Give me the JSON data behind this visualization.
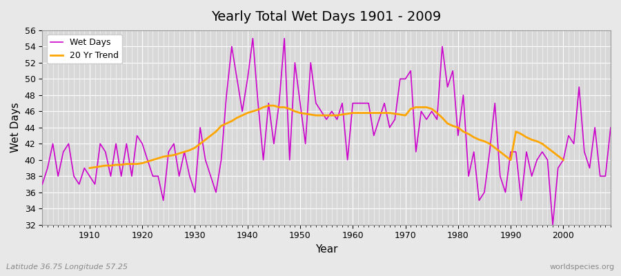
{
  "title": "Yearly Total Wet Days 1901 - 2009",
  "xlabel": "Year",
  "ylabel": "Wet Days",
  "subtitle": "Latitude 36.75 Longitude 57.25",
  "watermark": "worldspecies.org",
  "wet_days_color": "#cc00cc",
  "trend_color": "#ffa500",
  "bg_color": "#e8e8e8",
  "plot_bg_color": "#d8d8d8",
  "ylim": [
    32,
    56
  ],
  "yticks": [
    32,
    34,
    36,
    38,
    40,
    42,
    44,
    46,
    48,
    50,
    52,
    54,
    56
  ],
  "years": [
    1901,
    1902,
    1903,
    1904,
    1905,
    1906,
    1907,
    1908,
    1909,
    1910,
    1911,
    1912,
    1913,
    1914,
    1915,
    1916,
    1917,
    1918,
    1919,
    1920,
    1921,
    1922,
    1923,
    1924,
    1925,
    1926,
    1927,
    1928,
    1929,
    1930,
    1931,
    1932,
    1933,
    1934,
    1935,
    1936,
    1937,
    1938,
    1939,
    1940,
    1941,
    1942,
    1943,
    1944,
    1945,
    1946,
    1947,
    1948,
    1949,
    1950,
    1951,
    1952,
    1953,
    1954,
    1955,
    1956,
    1957,
    1958,
    1959,
    1960,
    1961,
    1962,
    1963,
    1964,
    1965,
    1966,
    1967,
    1968,
    1969,
    1970,
    1971,
    1972,
    1973,
    1974,
    1975,
    1976,
    1977,
    1978,
    1979,
    1980,
    1981,
    1982,
    1983,
    1984,
    1985,
    1986,
    1987,
    1988,
    1989,
    1990,
    1991,
    1992,
    1993,
    1994,
    1995,
    1996,
    1997,
    1998,
    1999,
    2000,
    2001,
    2002,
    2003,
    2004,
    2005,
    2006,
    2007,
    2008,
    2009
  ],
  "wet_days": [
    37,
    39,
    42,
    38,
    41,
    42,
    38,
    37,
    39,
    38,
    37,
    42,
    41,
    38,
    42,
    38,
    42,
    38,
    43,
    42,
    40,
    38,
    38,
    35,
    41,
    42,
    38,
    41,
    38,
    36,
    44,
    40,
    38,
    36,
    40,
    48,
    54,
    50,
    46,
    50,
    55,
    47,
    40,
    47,
    42,
    47,
    55,
    40,
    52,
    47,
    42,
    52,
    47,
    46,
    45,
    46,
    45,
    47,
    40,
    47,
    47,
    47,
    47,
    43,
    45,
    47,
    44,
    45,
    50,
    50,
    51,
    41,
    46,
    45,
    46,
    45,
    54,
    49,
    51,
    43,
    48,
    38,
    41,
    35,
    36,
    41,
    47,
    38,
    36,
    41,
    41,
    35,
    41,
    38,
    40,
    41,
    40,
    32,
    39,
    40,
    43,
    42,
    49,
    41,
    39,
    44,
    38,
    38,
    44
  ],
  "trend_years": [
    1910,
    1911,
    1912,
    1913,
    1914,
    1915,
    1916,
    1917,
    1918,
    1919,
    1920,
    1921,
    1922,
    1923,
    1924,
    1925,
    1926,
    1927,
    1928,
    1929,
    1930,
    1931,
    1932,
    1933,
    1934,
    1935,
    1936,
    1937,
    1938,
    1939,
    1940,
    1941,
    1942,
    1943,
    1944,
    1945,
    1946,
    1947,
    1948,
    1949,
    1950,
    1951,
    1952,
    1953,
    1954,
    1955,
    1956,
    1957,
    1958,
    1959,
    1960,
    1961,
    1962,
    1963,
    1964,
    1965,
    1966,
    1967,
    1968,
    1969,
    1970,
    1971,
    1972,
    1973,
    1974,
    1975,
    1976,
    1977,
    1978,
    1979,
    1980,
    1981,
    1982,
    1983,
    1984,
    1985,
    1986,
    1987,
    1988,
    1989,
    1990,
    1991,
    1992,
    1993,
    1994,
    1995,
    1996,
    1997,
    1998,
    1999,
    2000
  ],
  "trend_values": [
    39.0,
    39.1,
    39.2,
    39.3,
    39.3,
    39.4,
    39.4,
    39.5,
    39.5,
    39.5,
    39.6,
    39.8,
    40.0,
    40.2,
    40.4,
    40.5,
    40.6,
    40.8,
    41.0,
    41.2,
    41.5,
    42.0,
    42.5,
    43.0,
    43.5,
    44.2,
    44.5,
    44.8,
    45.2,
    45.5,
    45.8,
    46.0,
    46.2,
    46.5,
    46.7,
    46.7,
    46.5,
    46.5,
    46.3,
    46.0,
    45.8,
    45.7,
    45.6,
    45.5,
    45.5,
    45.5,
    45.5,
    45.5,
    45.6,
    45.7,
    45.8,
    45.8,
    45.8,
    45.8,
    45.8,
    45.8,
    45.8,
    45.8,
    45.7,
    45.6,
    45.5,
    46.3,
    46.5,
    46.5,
    46.5,
    46.3,
    45.8,
    45.2,
    44.5,
    44.2,
    44.0,
    43.5,
    43.2,
    42.8,
    42.5,
    42.3,
    42.0,
    41.5,
    41.0,
    40.5,
    40.0,
    43.5,
    43.2,
    42.8,
    42.5,
    42.3,
    42.0,
    41.5,
    41.0,
    40.5,
    40.0
  ]
}
